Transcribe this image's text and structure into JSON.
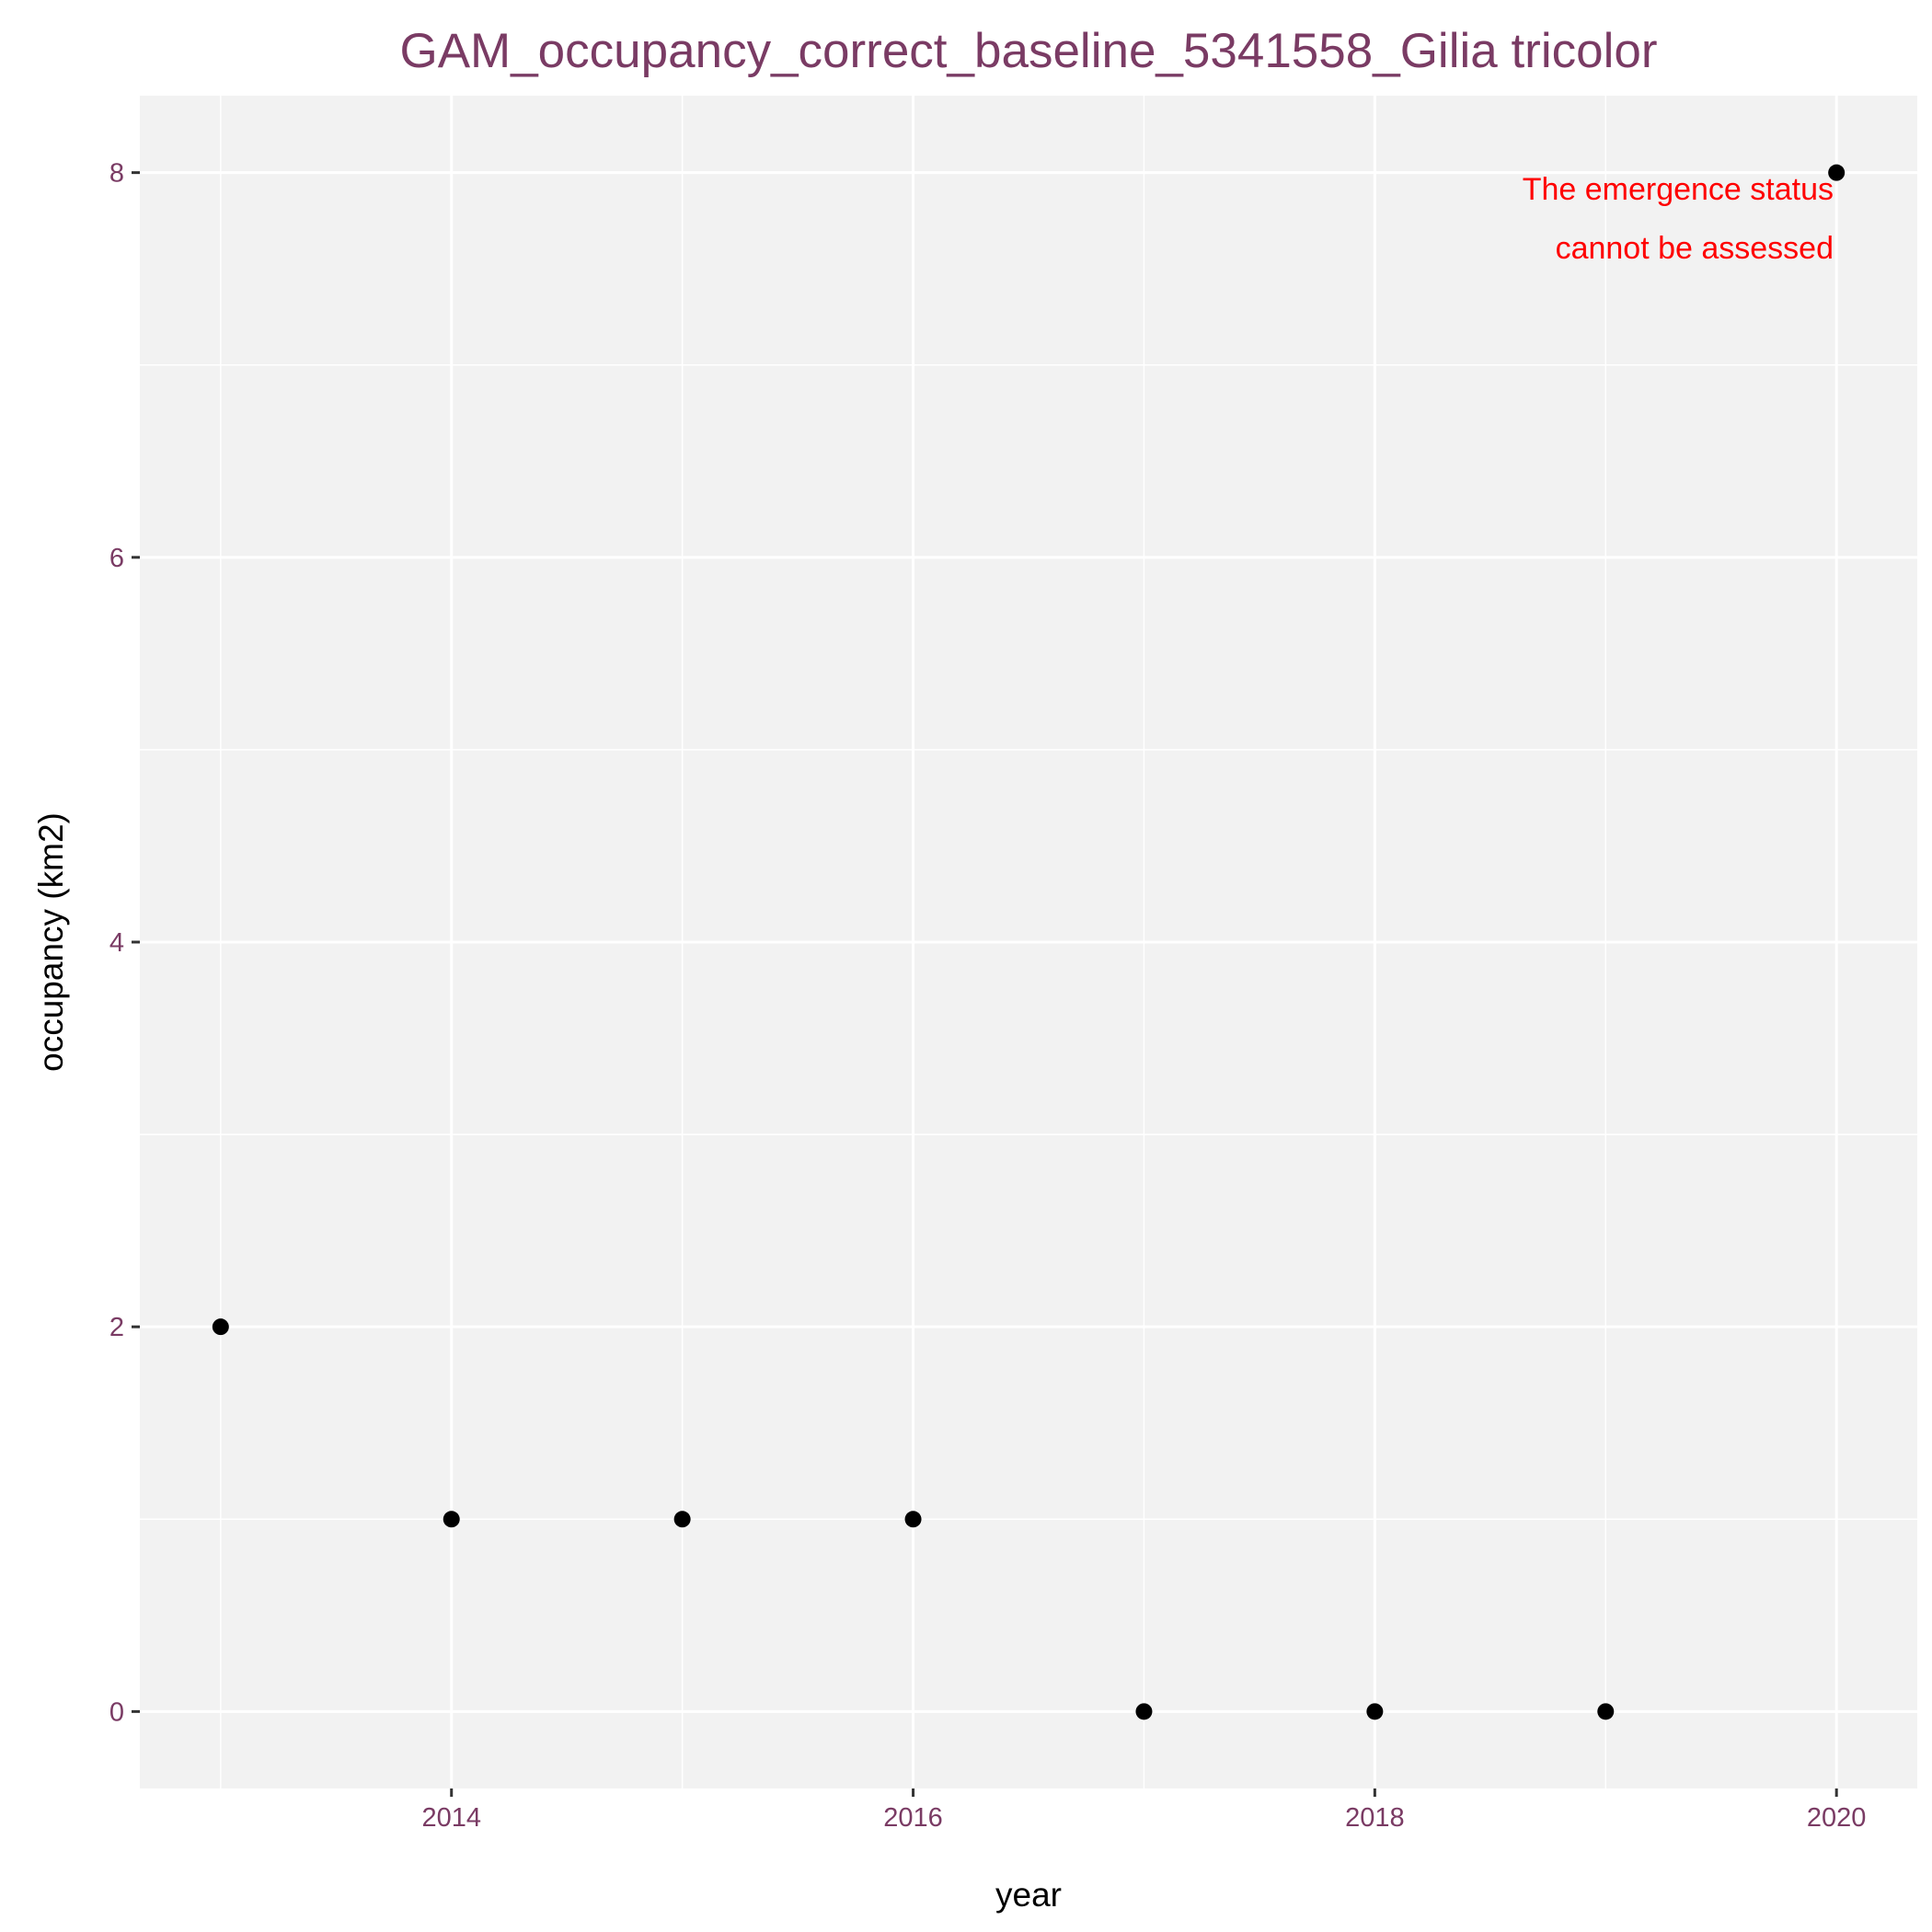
{
  "chart_data": {
    "type": "scatter",
    "title": "GAM_occupancy_correct_baseline_5341558_Gilia tricolor",
    "xlabel": "year",
    "ylabel": "occupancy (km2)",
    "x": [
      2013,
      2014,
      2015,
      2016,
      2017,
      2018,
      2019,
      2020
    ],
    "y": [
      2,
      1,
      1,
      1,
      0,
      0,
      0,
      8
    ],
    "xlim": [
      2012.65,
      2020.35
    ],
    "ylim": [
      -0.4,
      8.4
    ],
    "x_ticks": [
      2014,
      2016,
      2018,
      2020
    ],
    "x_tick_labels": [
      "2014",
      "2016",
      "2018",
      "2020"
    ],
    "y_ticks": [
      0,
      2,
      4,
      6,
      8
    ],
    "y_tick_labels": [
      "0",
      "2",
      "4",
      "6",
      "8"
    ],
    "annotation": {
      "lines": [
        "The emergence status",
        "cannot be assessed"
      ],
      "color": "#ff0000"
    },
    "grid": true,
    "legend": "none",
    "colors": {
      "title": "#7a3b64",
      "tick_label": "#7a3b64",
      "panel": "#f2f2f2",
      "grid": "#ffffff",
      "point": "#000000"
    }
  }
}
